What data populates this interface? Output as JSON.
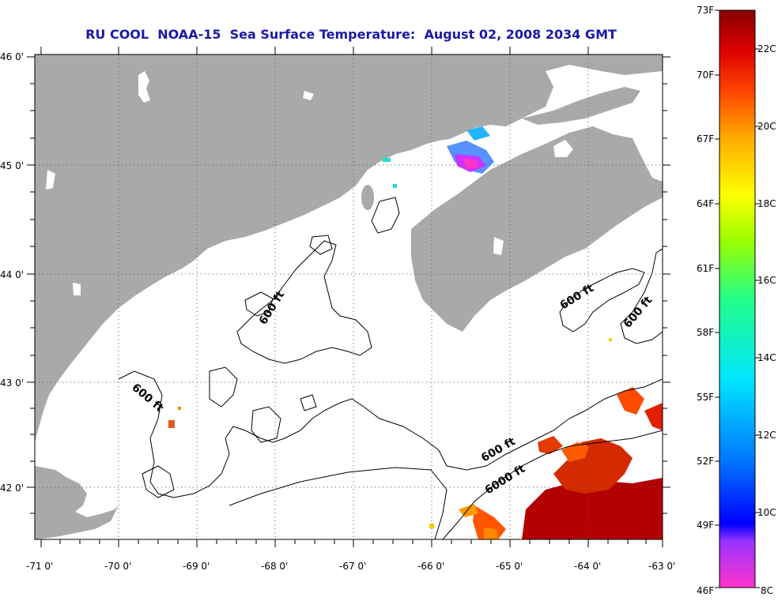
{
  "title": "RU COOL  NOAA-15  Sea Surface Temperature:  August 02, 2008 2034 GMT",
  "lat_labels": [
    "46 0'",
    "45 0'",
    "44 0'",
    "43 0'",
    "42 0'"
  ],
  "lon_labels": [
    "-71 0'",
    "-70 0'",
    "-69 0'",
    "-68 0'",
    "-67 0'",
    "-66 0'",
    "-65 0'",
    "-64 0'",
    "-63 0'"
  ],
  "contour_labels": [
    "600 ft",
    "600 ft",
    "600 ft",
    "600 ft",
    "600 ft",
    "6000 ft"
  ],
  "colorbar": {
    "f_labels": [
      "73F",
      "70F",
      "67F",
      "64F",
      "61F",
      "58F",
      "55F",
      "52F",
      "49F",
      "46F"
    ],
    "c_labels": [
      "22C",
      "20C",
      "18C",
      "16C",
      "14C",
      "12C",
      "10C",
      "8C"
    ]
  },
  "colors": {
    "land": "#a9a9a9",
    "title": "#1a1aa6"
  }
}
